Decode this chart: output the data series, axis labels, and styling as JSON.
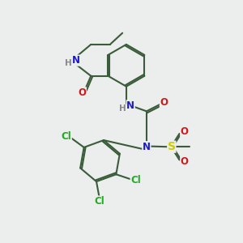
{
  "bg_color": "#eceeed",
  "bond_color": "#3a5c3a",
  "bond_width": 1.5,
  "atom_colors": {
    "C": "#3a5c3a",
    "N": "#1a1acc",
    "O": "#cc1a1a",
    "S": "#cccc00",
    "Cl": "#22aa22",
    "H": "#888888"
  },
  "font_size": 8.5,
  "font_size_small": 7.5,
  "font_size_S": 10
}
